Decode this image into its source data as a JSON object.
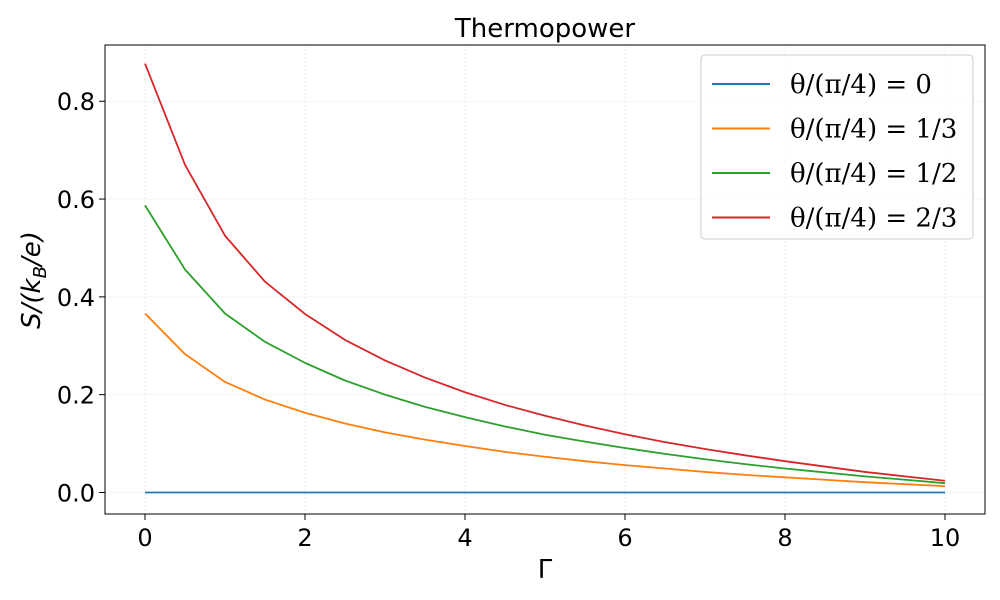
{
  "chart_data": {
    "type": "line",
    "title": "Thermopower",
    "xlabel": "Γ",
    "ylabel": "S/(k_B/e)",
    "xlim": [
      -0.5,
      10.5
    ],
    "ylim": [
      -0.044,
      0.915
    ],
    "xticks": [
      0,
      2,
      4,
      6,
      8,
      10
    ],
    "xtick_labels": [
      "0",
      "2",
      "4",
      "6",
      "8",
      "10"
    ],
    "yticks": [
      0.0,
      0.2,
      0.4,
      0.6,
      0.8
    ],
    "ytick_labels": [
      "0.0",
      "0.2",
      "0.4",
      "0.6",
      "0.8"
    ],
    "grid": true,
    "legend_position": "top-right",
    "x": [
      0,
      0.5,
      1,
      1.5,
      2,
      2.5,
      3,
      3.5,
      4,
      4.5,
      5,
      5.5,
      6,
      6.5,
      7,
      7.5,
      8,
      8.5,
      9,
      9.5,
      10
    ],
    "series": [
      {
        "name": "θ/(π/4) = 0",
        "color": "#1f77b4",
        "values": [
          0,
          0,
          0,
          0,
          0,
          0,
          0,
          0,
          0,
          0,
          0,
          0,
          0,
          0,
          0,
          0,
          0,
          0,
          0,
          0,
          0
        ]
      },
      {
        "name": "θ/(π/4) = 1/3",
        "color": "#ff7f0e",
        "values": [
          0.366,
          0.283,
          0.226,
          0.19,
          0.163,
          0.141,
          0.123,
          0.108,
          0.095,
          0.083,
          0.073,
          0.064,
          0.056,
          0.049,
          0.042,
          0.036,
          0.031,
          0.026,
          0.021,
          0.017,
          0.013
        ]
      },
      {
        "name": "θ/(π/4) = 1/2",
        "color": "#2ca02c",
        "values": [
          0.587,
          0.456,
          0.366,
          0.308,
          0.265,
          0.229,
          0.2,
          0.175,
          0.154,
          0.135,
          0.118,
          0.104,
          0.091,
          0.079,
          0.068,
          0.058,
          0.049,
          0.041,
          0.033,
          0.026,
          0.019
        ]
      },
      {
        "name": "θ/(π/4) = 2/3",
        "color": "#d62728",
        "values": [
          0.877,
          0.67,
          0.525,
          0.431,
          0.365,
          0.312,
          0.27,
          0.235,
          0.205,
          0.179,
          0.157,
          0.137,
          0.119,
          0.103,
          0.089,
          0.076,
          0.064,
          0.053,
          0.042,
          0.033,
          0.024
        ]
      }
    ],
    "legend_labels": [
      {
        "prefix": "θ/(π/4)",
        "rhs": "0"
      },
      {
        "prefix": "θ/(π/4)",
        "rhs": "1/3"
      },
      {
        "prefix": "θ/(π/4)",
        "rhs": "1/2"
      },
      {
        "prefix": "θ/(π/4)",
        "rhs": "2/3"
      }
    ]
  }
}
